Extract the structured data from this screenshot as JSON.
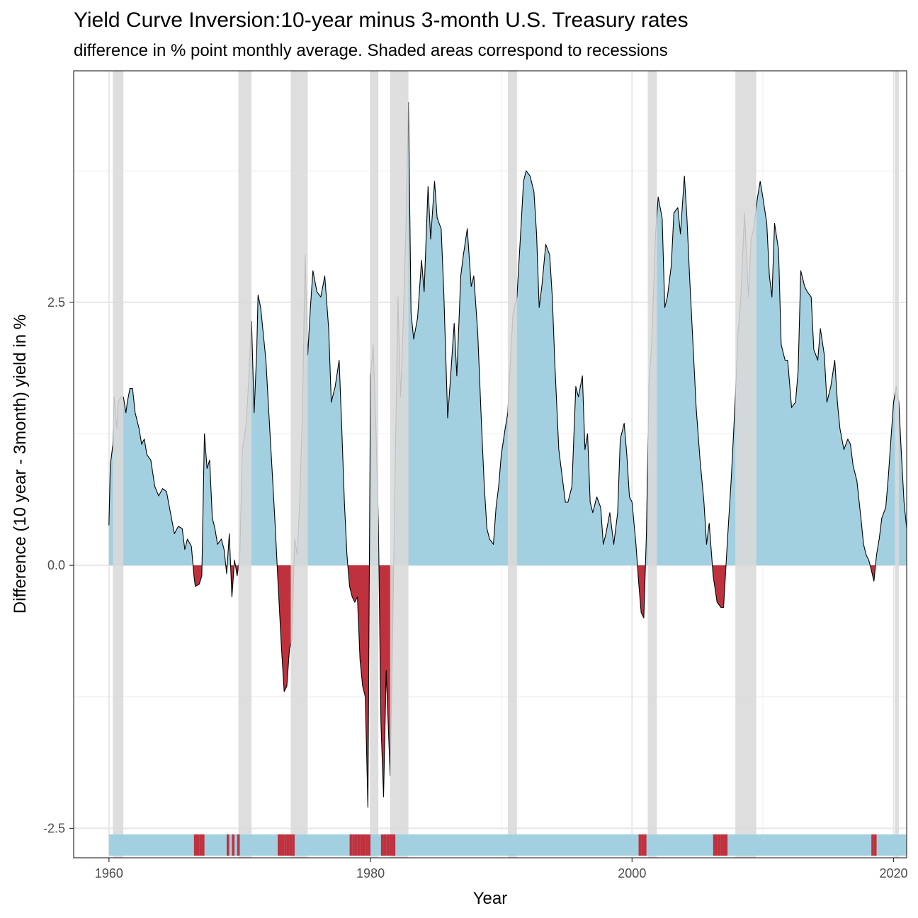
{
  "chart_data": {
    "type": "area",
    "title": "Yield Curve Inversion:10-year minus 3-month U.S. Treasury rates",
    "subtitle": "difference in % point monthly average. Shaded areas correspond to recessions",
    "xlabel": "Year",
    "ylabel": "Difference (10 year - 3month) yield in %",
    "xlim": [
      1957.3,
      2021.0
    ],
    "ylim": [
      -2.78,
      4.7
    ],
    "x_ticks": [
      "1960",
      "1980",
      "2000",
      "2020"
    ],
    "y_ticks": [
      "-2.5",
      "0.0",
      "2.5"
    ],
    "grid": true,
    "colors": {
      "positive": "#a3d0e1",
      "negative": "#c0313e",
      "recession": "#d9d9d9",
      "line": "#000000"
    },
    "recessions": [
      [
        1960.3,
        1961.1
      ],
      [
        1969.9,
        1970.9
      ],
      [
        1973.9,
        1975.2
      ],
      [
        1980.0,
        1980.6
      ],
      [
        1981.5,
        1982.9
      ],
      [
        1990.5,
        1991.2
      ],
      [
        2001.2,
        2001.9
      ],
      [
        2007.9,
        2009.5
      ],
      [
        2020.1,
        2020.4
      ]
    ],
    "points": [
      [
        1960.0,
        0.38
      ],
      [
        1960.1,
        0.95
      ],
      [
        1960.3,
        1.15
      ],
      [
        1960.4,
        1.6
      ],
      [
        1960.6,
        1.3
      ],
      [
        1960.7,
        1.55
      ],
      [
        1960.9,
        1.6
      ],
      [
        1961.1,
        1.6
      ],
      [
        1961.3,
        1.45
      ],
      [
        1961.4,
        1.55
      ],
      [
        1961.6,
        1.68
      ],
      [
        1961.8,
        1.68
      ],
      [
        1962.0,
        1.45
      ],
      [
        1962.3,
        1.3
      ],
      [
        1962.5,
        1.15
      ],
      [
        1962.7,
        1.2
      ],
      [
        1962.9,
        1.05
      ],
      [
        1963.2,
        1.0
      ],
      [
        1963.5,
        0.75
      ],
      [
        1963.8,
        0.66
      ],
      [
        1964.1,
        0.73
      ],
      [
        1964.4,
        0.7
      ],
      [
        1964.7,
        0.5
      ],
      [
        1965.0,
        0.3
      ],
      [
        1965.3,
        0.37
      ],
      [
        1965.6,
        0.35
      ],
      [
        1965.8,
        0.15
      ],
      [
        1966.0,
        0.25
      ],
      [
        1966.3,
        0.18
      ],
      [
        1966.5,
        -0.1
      ],
      [
        1966.6,
        -0.2
      ],
      [
        1966.9,
        -0.18
      ],
      [
        1967.1,
        -0.1
      ],
      [
        1967.3,
        1.25
      ],
      [
        1967.5,
        0.92
      ],
      [
        1967.7,
        1.0
      ],
      [
        1967.9,
        0.45
      ],
      [
        1968.1,
        0.35
      ],
      [
        1968.3,
        0.2
      ],
      [
        1968.6,
        0.25
      ],
      [
        1968.8,
        0.15
      ],
      [
        1969.0,
        -0.08
      ],
      [
        1969.2,
        0.3
      ],
      [
        1969.4,
        -0.3
      ],
      [
        1969.6,
        0.05
      ],
      [
        1969.8,
        -0.1
      ],
      [
        1970.0,
        0.08
      ],
      [
        1970.2,
        1.1
      ],
      [
        1970.5,
        1.35
      ],
      [
        1970.7,
        1.8
      ],
      [
        1970.9,
        2.32
      ],
      [
        1971.1,
        1.45
      ],
      [
        1971.3,
        2.05
      ],
      [
        1971.4,
        2.57
      ],
      [
        1971.6,
        2.45
      ],
      [
        1971.8,
        2.2
      ],
      [
        1972.0,
        1.95
      ],
      [
        1972.2,
        1.5
      ],
      [
        1972.5,
        0.85
      ],
      [
        1972.7,
        0.4
      ],
      [
        1972.9,
        -0.1
      ],
      [
        1973.2,
        -0.8
      ],
      [
        1973.4,
        -1.2
      ],
      [
        1973.6,
        -1.15
      ],
      [
        1973.8,
        -0.8
      ],
      [
        1974.0,
        -0.7
      ],
      [
        1974.2,
        0.25
      ],
      [
        1974.4,
        0.1
      ],
      [
        1974.6,
        0.65
      ],
      [
        1974.8,
        1.5
      ],
      [
        1975.0,
        2.95
      ],
      [
        1975.2,
        2.0
      ],
      [
        1975.4,
        2.45
      ],
      [
        1975.6,
        2.8
      ],
      [
        1975.9,
        2.6
      ],
      [
        1976.2,
        2.55
      ],
      [
        1976.5,
        2.75
      ],
      [
        1976.8,
        2.25
      ],
      [
        1977.0,
        1.55
      ],
      [
        1977.3,
        1.7
      ],
      [
        1977.6,
        1.95
      ],
      [
        1977.8,
        1.3
      ],
      [
        1978.0,
        0.6
      ],
      [
        1978.2,
        0.1
      ],
      [
        1978.4,
        -0.2
      ],
      [
        1978.6,
        -0.3
      ],
      [
        1978.8,
        -0.35
      ],
      [
        1979.0,
        -0.3
      ],
      [
        1979.2,
        -0.9
      ],
      [
        1979.4,
        -1.15
      ],
      [
        1979.6,
        -1.25
      ],
      [
        1979.8,
        -2.3
      ],
      [
        1980.0,
        1.8
      ],
      [
        1980.2,
        2.1
      ],
      [
        1980.4,
        1.35
      ],
      [
        1980.6,
        0.4
      ],
      [
        1980.8,
        -1.5
      ],
      [
        1981.0,
        -2.2
      ],
      [
        1981.2,
        -1.0
      ],
      [
        1981.5,
        -2.0
      ],
      [
        1981.7,
        -0.6
      ],
      [
        1981.9,
        1.05
      ],
      [
        1982.1,
        2.55
      ],
      [
        1982.3,
        1.6
      ],
      [
        1982.5,
        2.3
      ],
      [
        1982.7,
        3.15
      ],
      [
        1982.9,
        4.4
      ],
      [
        1983.1,
        2.4
      ],
      [
        1983.3,
        2.15
      ],
      [
        1983.6,
        2.35
      ],
      [
        1983.9,
        2.9
      ],
      [
        1984.1,
        2.6
      ],
      [
        1984.4,
        3.6
      ],
      [
        1984.6,
        3.1
      ],
      [
        1984.9,
        3.65
      ],
      [
        1985.1,
        3.3
      ],
      [
        1985.4,
        3.2
      ],
      [
        1985.6,
        2.6
      ],
      [
        1985.9,
        1.4
      ],
      [
        1986.1,
        1.75
      ],
      [
        1986.4,
        2.3
      ],
      [
        1986.6,
        1.8
      ],
      [
        1986.9,
        2.75
      ],
      [
        1987.1,
        2.95
      ],
      [
        1987.4,
        3.2
      ],
      [
        1987.7,
        2.65
      ],
      [
        1987.9,
        2.75
      ],
      [
        1988.2,
        2.2
      ],
      [
        1988.5,
        1.3
      ],
      [
        1988.7,
        0.75
      ],
      [
        1988.9,
        0.35
      ],
      [
        1989.1,
        0.25
      ],
      [
        1989.4,
        0.2
      ],
      [
        1989.6,
        0.55
      ],
      [
        1989.8,
        0.75
      ],
      [
        1990.0,
        1.05
      ],
      [
        1990.3,
        1.3
      ],
      [
        1990.5,
        1.45
      ],
      [
        1990.7,
        1.95
      ],
      [
        1990.9,
        2.4
      ],
      [
        1991.2,
        2.55
      ],
      [
        1991.5,
        3.2
      ],
      [
        1991.7,
        3.65
      ],
      [
        1991.9,
        3.75
      ],
      [
        1992.2,
        3.7
      ],
      [
        1992.5,
        3.55
      ],
      [
        1992.7,
        3.15
      ],
      [
        1992.9,
        2.45
      ],
      [
        1993.1,
        2.65
      ],
      [
        1993.4,
        3.05
      ],
      [
        1993.7,
        2.95
      ],
      [
        1993.9,
        2.55
      ],
      [
        1994.1,
        1.9
      ],
      [
        1994.4,
        1.1
      ],
      [
        1994.6,
        0.9
      ],
      [
        1994.9,
        0.6
      ],
      [
        1995.1,
        0.6
      ],
      [
        1995.4,
        0.75
      ],
      [
        1995.7,
        1.7
      ],
      [
        1995.9,
        1.6
      ],
      [
        1996.2,
        1.8
      ],
      [
        1996.4,
        1.1
      ],
      [
        1996.6,
        1.25
      ],
      [
        1996.8,
        0.6
      ],
      [
        1997.0,
        0.5
      ],
      [
        1997.3,
        0.65
      ],
      [
        1997.6,
        0.55
      ],
      [
        1997.8,
        0.2
      ],
      [
        1998.0,
        0.3
      ],
      [
        1998.3,
        0.5
      ],
      [
        1998.6,
        0.2
      ],
      [
        1998.9,
        0.5
      ],
      [
        1999.1,
        1.2
      ],
      [
        1999.4,
        1.35
      ],
      [
        1999.6,
        1.05
      ],
      [
        1999.8,
        0.65
      ],
      [
        2000.0,
        0.6
      ],
      [
        2000.3,
        0.2
      ],
      [
        2000.5,
        -0.15
      ],
      [
        2000.7,
        -0.45
      ],
      [
        2000.9,
        -0.5
      ],
      [
        2001.1,
        0.3
      ],
      [
        2001.3,
        1.75
      ],
      [
        2001.5,
        2.1
      ],
      [
        2001.8,
        3.15
      ],
      [
        2002.0,
        3.5
      ],
      [
        2002.3,
        3.3
      ],
      [
        2002.5,
        2.45
      ],
      [
        2002.7,
        2.55
      ],
      [
        2003.0,
        2.85
      ],
      [
        2003.2,
        3.35
      ],
      [
        2003.5,
        3.4
      ],
      [
        2003.7,
        3.15
      ],
      [
        2004.0,
        3.7
      ],
      [
        2004.2,
        3.3
      ],
      [
        2004.4,
        2.75
      ],
      [
        2004.7,
        2.0
      ],
      [
        2004.9,
        1.5
      ],
      [
        2005.2,
        1.0
      ],
      [
        2005.5,
        0.6
      ],
      [
        2005.7,
        0.2
      ],
      [
        2005.9,
        0.4
      ],
      [
        2006.2,
        -0.1
      ],
      [
        2006.5,
        -0.35
      ],
      [
        2006.8,
        -0.4
      ],
      [
        2007.0,
        -0.4
      ],
      [
        2007.3,
        0.25
      ],
      [
        2007.6,
        0.85
      ],
      [
        2007.9,
        1.6
      ],
      [
        2008.1,
        2.2
      ],
      [
        2008.3,
        2.5
      ],
      [
        2008.6,
        3.35
      ],
      [
        2008.9,
        2.55
      ],
      [
        2009.1,
        3.1
      ],
      [
        2009.3,
        3.2
      ],
      [
        2009.6,
        3.5
      ],
      [
        2009.8,
        3.65
      ],
      [
        2010.0,
        3.5
      ],
      [
        2010.3,
        3.25
      ],
      [
        2010.5,
        2.75
      ],
      [
        2010.7,
        2.55
      ],
      [
        2010.9,
        3.25
      ],
      [
        2011.2,
        3.0
      ],
      [
        2011.4,
        2.1
      ],
      [
        2011.7,
        1.95
      ],
      [
        2011.9,
        1.95
      ],
      [
        2012.2,
        1.5
      ],
      [
        2012.5,
        1.55
      ],
      [
        2012.7,
        1.85
      ],
      [
        2012.9,
        2.8
      ],
      [
        2013.2,
        2.65
      ],
      [
        2013.4,
        2.6
      ],
      [
        2013.7,
        2.55
      ],
      [
        2013.9,
        2.05
      ],
      [
        2014.2,
        1.95
      ],
      [
        2014.4,
        2.25
      ],
      [
        2014.7,
        2.0
      ],
      [
        2014.9,
        1.55
      ],
      [
        2015.2,
        1.7
      ],
      [
        2015.5,
        1.95
      ],
      [
        2015.7,
        1.55
      ],
      [
        2015.9,
        1.3
      ],
      [
        2016.2,
        1.1
      ],
      [
        2016.5,
        1.2
      ],
      [
        2016.7,
        1.15
      ],
      [
        2016.9,
        0.95
      ],
      [
        2017.2,
        0.8
      ],
      [
        2017.5,
        0.45
      ],
      [
        2017.7,
        0.2
      ],
      [
        2017.9,
        0.1
      ],
      [
        2018.1,
        0.05
      ],
      [
        2018.3,
        -0.05
      ],
      [
        2018.5,
        -0.15
      ],
      [
        2018.7,
        0.1
      ],
      [
        2018.9,
        0.25
      ],
      [
        2019.1,
        0.45
      ],
      [
        2019.4,
        0.55
      ],
      [
        2019.6,
        0.85
      ],
      [
        2019.8,
        1.2
      ],
      [
        2020.0,
        1.55
      ],
      [
        2020.2,
        1.7
      ],
      [
        2020.4,
        1.55
      ],
      [
        2020.6,
        1.05
      ],
      [
        2020.8,
        0.6
      ],
      [
        2021.0,
        0.35
      ]
    ]
  }
}
